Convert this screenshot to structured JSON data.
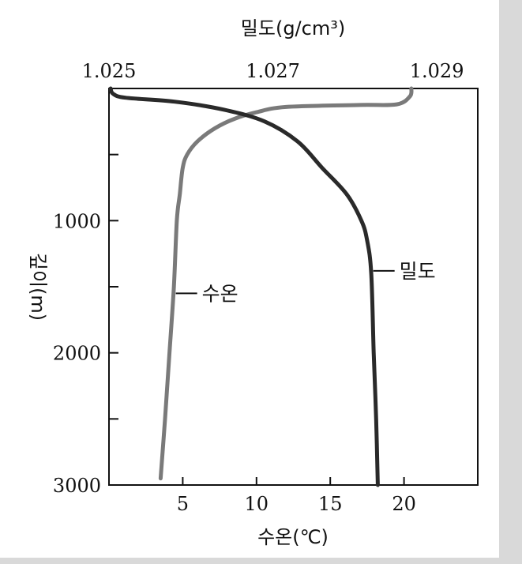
{
  "chart_data": {
    "type": "line",
    "top_axis": {
      "label": "밀도(g/cm³)",
      "range": [
        1.025,
        1.0295
      ],
      "ticks": [
        "1.025",
        "1.027",
        "1.029"
      ],
      "tick_values": [
        1.025,
        1.027,
        1.029
      ]
    },
    "bottom_axis": {
      "label": "수온(℃)",
      "range": [
        0,
        25
      ],
      "ticks": [
        "5",
        "10",
        "15",
        "20"
      ],
      "tick_values": [
        5,
        10,
        15,
        20
      ]
    },
    "y_axis": {
      "label": "깊이(m)",
      "range": [
        0,
        3000
      ],
      "inverted": true,
      "ticks": [
        "1000",
        "2000",
        "3000"
      ],
      "tick_values": [
        1000,
        2000,
        3000
      ],
      "minor_tick_values": [
        500,
        1500,
        2500
      ]
    },
    "grid": false,
    "series": [
      {
        "name": "수온",
        "axis": "bottom",
        "color": "#7a7a7a",
        "points": [
          [
            20.5,
            0
          ],
          [
            20.4,
            60
          ],
          [
            19.5,
            120
          ],
          [
            17.0,
            125
          ],
          [
            12.0,
            140
          ],
          [
            10.0,
            180
          ],
          [
            8.5,
            230
          ],
          [
            7.2,
            300
          ],
          [
            6.0,
            400
          ],
          [
            5.3,
            500
          ],
          [
            5.0,
            600
          ],
          [
            4.8,
            800
          ],
          [
            4.6,
            1000
          ],
          [
            4.4,
            1500
          ],
          [
            4.1,
            2000
          ],
          [
            3.8,
            2500
          ],
          [
            3.5,
            2950
          ]
        ]
      },
      {
        "name": "밀도",
        "axis": "top",
        "color": "#2a2a2a",
        "points": [
          [
            1.02502,
            0
          ],
          [
            1.02505,
            40
          ],
          [
            1.0252,
            70
          ],
          [
            1.0258,
            100
          ],
          [
            1.0264,
            160
          ],
          [
            1.0269,
            250
          ],
          [
            1.0273,
            400
          ],
          [
            1.0276,
            600
          ],
          [
            1.0279,
            800
          ],
          [
            1.02808,
            1000
          ],
          [
            1.02815,
            1150
          ],
          [
            1.0282,
            1400
          ],
          [
            1.02823,
            2000
          ],
          [
            1.02826,
            2500
          ],
          [
            1.02828,
            3000
          ]
        ]
      }
    ]
  }
}
